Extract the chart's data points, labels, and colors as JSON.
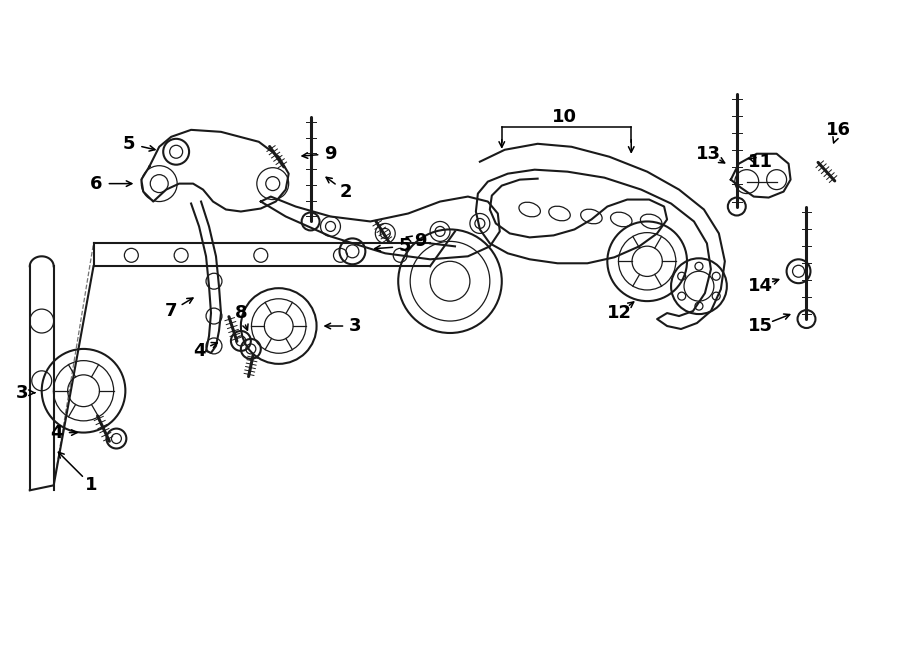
{
  "background_color": "#ffffff",
  "line_color": "#1a1a1a",
  "text_color": "#000000",
  "figsize": [
    9.0,
    6.61
  ],
  "dpi": 100
}
